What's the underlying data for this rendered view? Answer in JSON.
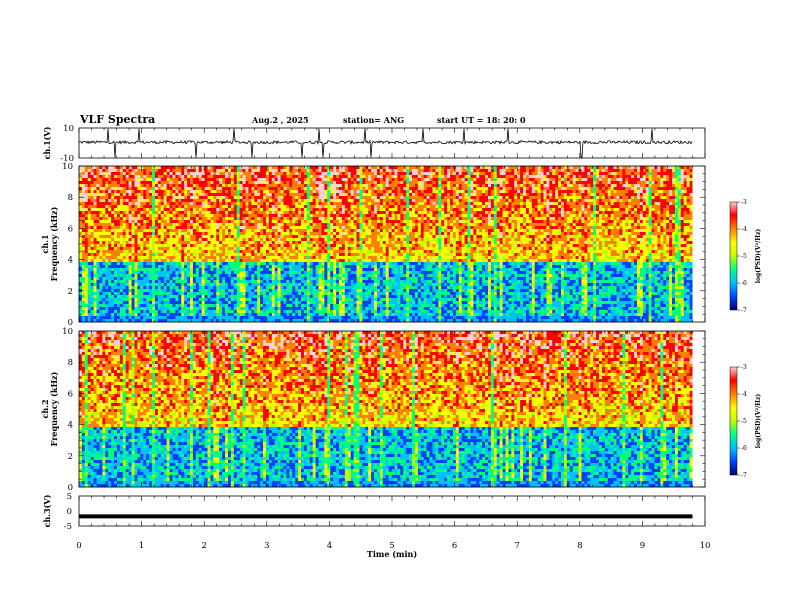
{
  "header": {
    "title": "VLF Spectra",
    "date": "Aug.2  , 2025",
    "station": "station= ANG",
    "start_ut": "start  UT  =   18: 20: 0"
  },
  "chart_data": {
    "type": "heatmap",
    "x_axis": {
      "label": "Time  (min)",
      "range": [
        0,
        10
      ],
      "ticks": [
        "0",
        "1",
        "2",
        "3",
        "4",
        "5",
        "6",
        "7",
        "8",
        "9",
        "10"
      ],
      "data_end_min": 9.8
    },
    "panels": [
      {
        "id": "ch1-waveform",
        "type": "line",
        "ylabel": "ch.1(V)",
        "ylim": [
          -10,
          10
        ],
        "yticks": [
          "10",
          "-10"
        ],
        "baseline_v": 0.5,
        "amplitude_v": 2
      },
      {
        "id": "ch1-spectrogram",
        "type": "heatmap",
        "ylabel_top": "ch.1",
        "ylabel": "Frequency (kHz)",
        "ylim": [
          0,
          10
        ],
        "yticks": [
          "0",
          "2",
          "4",
          "6",
          "8",
          "10"
        ],
        "colorbar": {
          "label": "log(PSD)(V²/Hz)",
          "range": [
            -7,
            -3
          ],
          "ticks": [
            "-3",
            "-4",
            "-5",
            "-6",
            "-7"
          ],
          "colors": [
            "#000070",
            "#0040ff",
            "#00c0ff",
            "#00ff80",
            "#c0ff00",
            "#ffff00",
            "#ff8000",
            "#ff0000",
            "#ffd0d0"
          ]
        }
      },
      {
        "id": "ch2-spectrogram",
        "type": "heatmap",
        "ylabel_top": "ch.2",
        "ylabel": "Frequency (kHz)",
        "ylim": [
          0,
          10
        ],
        "yticks": [
          "0",
          "2",
          "4",
          "6",
          "8",
          "10"
        ],
        "colorbar": {
          "label": "log(PSD)(V²/Hz)",
          "range": [
            -7,
            -3
          ],
          "ticks": [
            "-3",
            "-4",
            "-5",
            "-6",
            "-7"
          ],
          "colors": [
            "#000070",
            "#0040ff",
            "#00c0ff",
            "#00ff80",
            "#c0ff00",
            "#ffff00",
            "#ff8000",
            "#ff0000",
            "#ffd0d0"
          ]
        }
      },
      {
        "id": "ch3-waveform",
        "type": "line",
        "ylabel": "ch.3(V)",
        "ylim": [
          -5,
          5
        ],
        "yticks": [
          "5",
          "0",
          "-5"
        ],
        "baseline_v": -1.8
      }
    ]
  }
}
